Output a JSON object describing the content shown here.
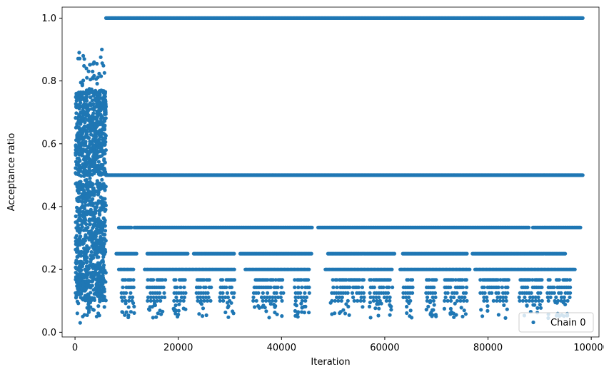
{
  "chart_data": {
    "type": "scatter",
    "xlabel": "Iteration",
    "ylabel": "Acceptance ratio",
    "xlim": [
      -2500,
      101500
    ],
    "ylim": [
      -0.015,
      1.035
    ],
    "xticks": [
      0,
      20000,
      40000,
      60000,
      80000,
      100000
    ],
    "xtick_labels": [
      "0",
      "20000",
      "40000",
      "60000",
      "80000",
      "100000"
    ],
    "yticks": [
      0.0,
      0.2,
      0.4,
      0.6,
      0.8,
      1.0
    ],
    "ytick_labels": [
      "0.0",
      "0.2",
      "0.4",
      "0.6",
      "0.8",
      "1.0"
    ],
    "legend_position": "lower-right",
    "grid": false,
    "color": "#1f77b4",
    "series": [
      {
        "name": "Chain 0",
        "marker": "dot",
        "description_of_values": "burn-in scatter for iterations 0-6000 spanning 0.03-0.90, then discrete levels 1, 1/2, 1/3, 1/4, 1/5, 1/6, 1/7, 1/8, 1/9, 1/10 and lower sparse values",
        "x": [
          200,
          400,
          600,
          900,
          1100,
          1400,
          1700,
          2000,
          2300,
          2600,
          2900,
          3200,
          3500,
          3800,
          4100,
          4400,
          4700,
          5000,
          5300,
          5600,
          800,
          1500,
          2200,
          3000,
          3700,
          4500,
          5200,
          1000,
          1800,
          2700,
          3400,
          4200,
          5100,
          600,
          1300,
          2100,
          2900,
          3600,
          4300,
          5000,
          5700,
          700,
          1600,
          2500,
          3300,
          4000,
          4800,
          5500,
          900,
          1900,
          2800,
          3900,
          4600,
          5400
        ],
        "y": [
          0.11,
          0.62,
          0.45,
          0.3,
          0.7,
          0.22,
          0.55,
          0.38,
          0.81,
          0.16,
          0.49,
          0.66,
          0.27,
          0.74,
          0.34,
          0.59,
          0.19,
          0.43,
          0.52,
          0.72,
          0.89,
          0.05,
          0.84,
          0.08,
          0.86,
          0.06,
          0.9,
          0.03,
          0.87,
          0.07,
          0.83,
          0.05,
          0.77,
          0.13,
          0.58,
          0.25,
          0.64,
          0.41,
          0.29,
          0.68,
          0.35,
          0.47,
          0.76,
          0.2,
          0.6,
          0.32,
          0.56,
          0.24,
          0.69,
          0.14,
          0.5,
          0.39,
          0.63,
          0.18
        ]
      }
    ]
  }
}
